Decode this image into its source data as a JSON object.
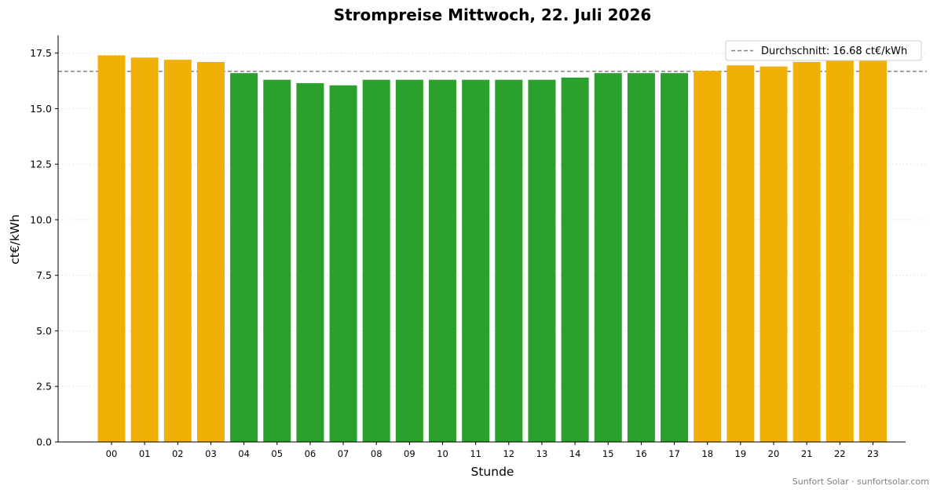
{
  "chart_data": {
    "type": "bar",
    "title": "Strompreise Mittwoch, 22. Juli 2026",
    "xlabel": "Stunde",
    "ylabel": "ct€/kWh",
    "ylim": [
      0,
      18.3
    ],
    "yticks": [
      "0.0",
      "2.5",
      "5.0",
      "7.5",
      "10.0",
      "12.5",
      "15.0",
      "17.5"
    ],
    "ytick_values": [
      0,
      2.5,
      5,
      7.5,
      10,
      12.5,
      15,
      17.5
    ],
    "categories": [
      "00",
      "01",
      "02",
      "03",
      "04",
      "05",
      "06",
      "07",
      "08",
      "09",
      "10",
      "11",
      "12",
      "13",
      "14",
      "15",
      "16",
      "17",
      "18",
      "19",
      "20",
      "21",
      "22",
      "23"
    ],
    "values": [
      17.4,
      17.3,
      17.2,
      17.1,
      16.6,
      16.3,
      16.15,
      16.05,
      16.3,
      16.3,
      16.3,
      16.3,
      16.3,
      16.3,
      16.4,
      16.6,
      16.6,
      16.6,
      16.7,
      16.95,
      16.9,
      17.1,
      17.15,
      17.15
    ],
    "bar_colors": [
      "#f0b005",
      "#f0b005",
      "#f0b005",
      "#f0b005",
      "#2ca02c",
      "#2ca02c",
      "#2ca02c",
      "#2ca02c",
      "#2ca02c",
      "#2ca02c",
      "#2ca02c",
      "#2ca02c",
      "#2ca02c",
      "#2ca02c",
      "#2ca02c",
      "#2ca02c",
      "#2ca02c",
      "#2ca02c",
      "#f0b005",
      "#f0b005",
      "#f0b005",
      "#f0b005",
      "#f0b005",
      "#f0b005"
    ],
    "average": {
      "value": 16.68,
      "label": "Durchschnitt: 16.68 ct€/kWh",
      "color": "#808080",
      "style": "dashed"
    },
    "grid": "horizontal-dotted",
    "legend_position": "top-right",
    "colors": {
      "expensive": "#f0b005",
      "cheap": "#2ca02c"
    }
  },
  "footer": "Sunfort Solar · sunfortsolar.com"
}
